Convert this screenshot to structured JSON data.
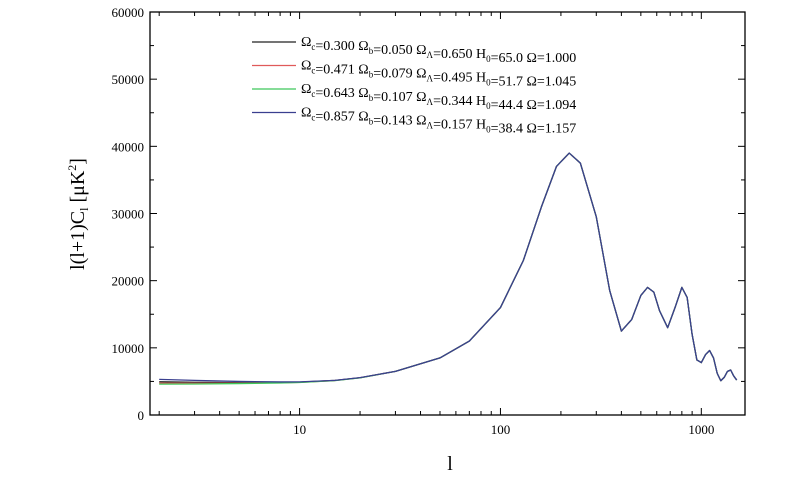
{
  "chart_data": {
    "type": "line",
    "xlabel": "l",
    "ylabel_parts": {
      "pre": "l(l+1)C",
      "sub": "l",
      "mid": " [μK",
      "sup": "2",
      "post": "]"
    },
    "x_scale": "log",
    "xlim": [
      1.8,
      1650
    ],
    "ylim": [
      0,
      60000
    ],
    "x_ticks": [
      10,
      100,
      1000
    ],
    "x_tick_labels": [
      "10",
      "100",
      "1000"
    ],
    "y_ticks": [
      0,
      10000,
      20000,
      30000,
      40000,
      50000,
      60000
    ],
    "y_tick_labels": [
      "0",
      "10000",
      "20000",
      "30000",
      "40000",
      "50000",
      "60000"
    ],
    "grid": false,
    "legend_position": "top-right",
    "series": [
      {
        "color": "#222222",
        "legend": [
          {
            "t": "Ω",
            "s": "c"
          },
          {
            "t": "=0.300 Ω",
            "s": "b"
          },
          {
            "t": "=0.050 Ω",
            "s": "Λ"
          },
          {
            "t": "=0.650 H",
            "s": "0"
          },
          {
            "t": "=65.0 Ω=1.000"
          }
        ],
        "x": [
          2,
          3,
          5,
          8,
          10,
          15,
          20,
          30,
          50,
          70,
          100,
          130,
          160,
          190,
          220,
          250,
          300,
          350,
          400,
          450,
          500,
          540,
          580,
          620,
          680,
          740,
          800,
          850,
          900,
          950,
          1000,
          1050,
          1100,
          1150,
          1200,
          1250,
          1300,
          1350,
          1400,
          1450,
          1500
        ],
        "y": [
          4950,
          4880,
          4820,
          4840,
          4900,
          5150,
          5550,
          6500,
          8500,
          11000,
          16000,
          23000,
          31000,
          37000,
          39000,
          37500,
          29500,
          18500,
          12500,
          14200,
          17800,
          19000,
          18300,
          15500,
          13000,
          16000,
          19000,
          17500,
          12000,
          8200,
          7800,
          9000,
          9600,
          8500,
          6200,
          5100,
          5600,
          6500,
          6700,
          5800,
          5200
        ]
      },
      {
        "color": "#e05a5a",
        "legend": [
          {
            "t": "Ω",
            "s": "c"
          },
          {
            "t": "=0.471 Ω",
            "s": "b"
          },
          {
            "t": "=0.079 Ω",
            "s": "Λ"
          },
          {
            "t": "=0.495 H",
            "s": "0"
          },
          {
            "t": "=51.7 Ω=1.045"
          }
        ],
        "x": [
          2,
          3,
          5,
          8,
          10,
          15,
          20,
          30,
          50,
          70,
          100,
          130,
          160,
          190,
          220,
          250,
          300,
          350,
          400,
          450,
          500,
          540,
          580,
          620,
          680,
          740,
          800,
          850,
          900,
          950,
          1000,
          1050,
          1100,
          1150,
          1200,
          1250,
          1300,
          1350,
          1400,
          1450,
          1500
        ],
        "y": [
          4750,
          4730,
          4740,
          4800,
          4870,
          5130,
          5540,
          6500,
          8500,
          11000,
          16000,
          23000,
          31000,
          37000,
          39000,
          37500,
          29500,
          18500,
          12500,
          14200,
          17800,
          19000,
          18300,
          15500,
          13000,
          16000,
          19000,
          17500,
          12000,
          8200,
          7800,
          9000,
          9600,
          8500,
          6200,
          5100,
          5600,
          6500,
          6700,
          5800,
          5200
        ]
      },
      {
        "color": "#3ec85a",
        "legend": [
          {
            "t": "Ω",
            "s": "c"
          },
          {
            "t": "=0.643 Ω",
            "s": "b"
          },
          {
            "t": "=0.107 Ω",
            "s": "Λ"
          },
          {
            "t": "=0.344 H",
            "s": "0"
          },
          {
            "t": "=44.4 Ω=1.094"
          }
        ],
        "x": [
          2,
          3,
          5,
          8,
          10,
          15,
          20,
          30,
          50,
          70,
          100,
          130,
          160,
          190,
          220,
          250,
          300,
          350,
          400,
          450,
          500,
          540,
          580,
          620,
          680,
          740,
          800,
          850,
          900,
          950,
          1000,
          1050,
          1100,
          1150,
          1200,
          1250,
          1300,
          1350,
          1400,
          1450,
          1500
        ],
        "y": [
          4600,
          4620,
          4680,
          4770,
          4850,
          5120,
          5530,
          6500,
          8500,
          11000,
          16000,
          23000,
          31000,
          37000,
          39000,
          37500,
          29500,
          18500,
          12500,
          14200,
          17800,
          19000,
          18300,
          15500,
          13000,
          16000,
          19000,
          17500,
          12000,
          8200,
          7800,
          9000,
          9600,
          8500,
          6200,
          5100,
          5600,
          6500,
          6700,
          5800,
          5200
        ]
      },
      {
        "color": "#3a3f8f",
        "legend": [
          {
            "t": "Ω",
            "s": "c"
          },
          {
            "t": "=0.857 Ω",
            "s": "b"
          },
          {
            "t": "=0.143 Ω",
            "s": "Λ"
          },
          {
            "t": "=0.157 H",
            "s": "0"
          },
          {
            "t": "=38.4 Ω=1.157"
          }
        ],
        "x": [
          2,
          3,
          5,
          8,
          10,
          15,
          20,
          30,
          50,
          70,
          100,
          130,
          160,
          190,
          220,
          250,
          300,
          350,
          400,
          450,
          500,
          540,
          580,
          620,
          680,
          740,
          800,
          850,
          900,
          950,
          1000,
          1050,
          1100,
          1150,
          1200,
          1250,
          1300,
          1350,
          1400,
          1450,
          1500
        ],
        "y": [
          5300,
          5150,
          5000,
          4920,
          4930,
          5160,
          5560,
          6500,
          8500,
          11000,
          16000,
          23000,
          31000,
          37000,
          39000,
          37500,
          29500,
          18500,
          12500,
          14200,
          17800,
          19000,
          18300,
          15500,
          13000,
          16000,
          19000,
          17500,
          12000,
          8200,
          7800,
          9000,
          9600,
          8500,
          6200,
          5100,
          5600,
          6500,
          6700,
          5800,
          5200
        ]
      }
    ]
  }
}
